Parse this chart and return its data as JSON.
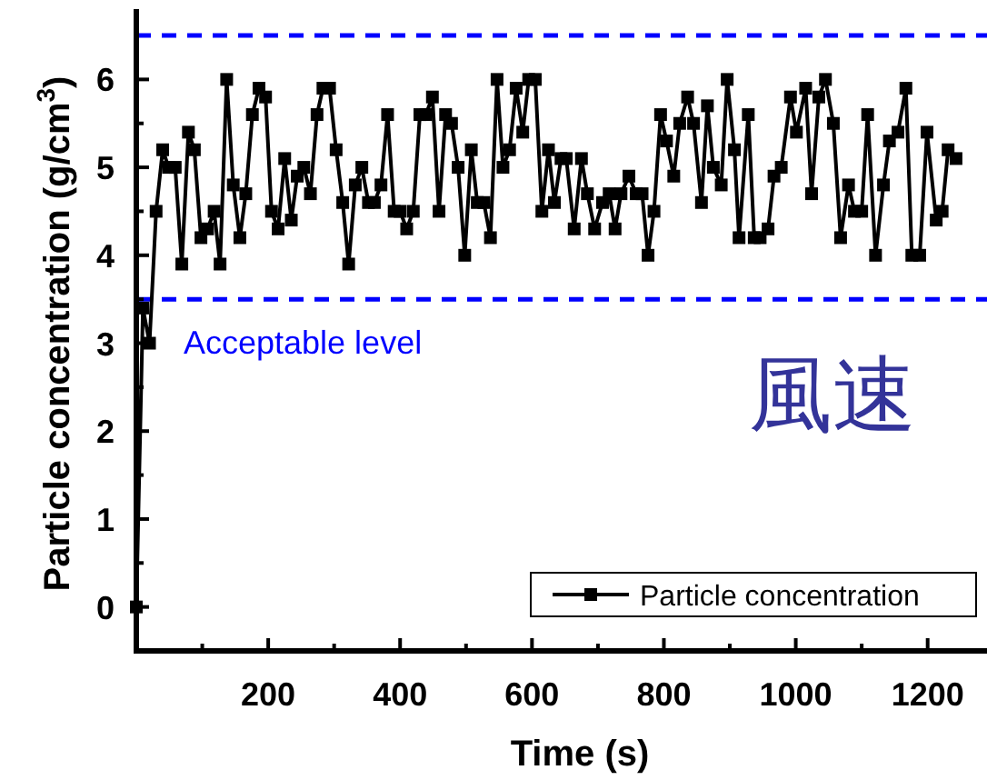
{
  "chart_data": {
    "type": "line",
    "xlabel": "Time (s)",
    "ylabel": "Particle concentration (g/cm$^{3}$)",
    "xlim": [
      0,
      1290
    ],
    "ylim": [
      -0.5,
      6.8
    ],
    "xticks": [
      {
        "value": 100,
        "label": null
      },
      200,
      {
        "value": 300,
        "label": null
      },
      400,
      {
        "value": 500,
        "label": null
      },
      600,
      {
        "value": 700,
        "label": null
      },
      800,
      {
        "value": 900,
        "label": null
      },
      1000,
      {
        "value": 1100,
        "label": null
      },
      1200
    ],
    "yticks": [
      0,
      {
        "value": 0.5,
        "label": null
      },
      1,
      {
        "value": 1.5,
        "label": null
      },
      2,
      {
        "value": 2.5,
        "label": null
      },
      3,
      {
        "value": 3.5,
        "label": null
      },
      4,
      {
        "value": 4.5,
        "label": null
      },
      5,
      {
        "value": 5.5,
        "label": null
      },
      6
    ],
    "legend": "bottom right",
    "marker": "square",
    "line_style": "solid",
    "grid": false,
    "ref_lines": [
      {
        "axis": "y",
        "value": 6.5,
        "color": "#0000ff",
        "line_style": "dashed"
      },
      {
        "axis": "y",
        "value": 3.5,
        "label": "Acceptable level",
        "color": "#0000ff",
        "line_style": "dashed"
      }
    ],
    "annotations": [
      "風速"
    ],
    "series": [
      {
        "name": "Particle concentration",
        "color": "#000000",
        "x": [
          0,
          10,
          20,
          30,
          40,
          49,
          59,
          69,
          79,
          88,
          98,
          108,
          118,
          127,
          137,
          147,
          157,
          166,
          176,
          186,
          196,
          205,
          215,
          225,
          235,
          244,
          254,
          264,
          274,
          283,
          293,
          303,
          313,
          322,
          332,
          342,
          352,
          361,
          371,
          381,
          391,
          400,
          410,
          420,
          430,
          439,
          449,
          459,
          469,
          478,
          488,
          498,
          508,
          517,
          527,
          537,
          547,
          556,
          566,
          576,
          586,
          595,
          605,
          615,
          625,
          634,
          644,
          652,
          664,
          675,
          684,
          695,
          707,
          717,
          726,
          735,
          747,
          758,
          767,
          776,
          785,
          795,
          804,
          815,
          824,
          836,
          845,
          857,
          866,
          875,
          887,
          896,
          907,
          914,
          928,
          937,
          946,
          958,
          967,
          978,
          992,
          1001,
          1015,
          1024,
          1035,
          1045,
          1057,
          1068,
          1080,
          1089,
          1100,
          1109,
          1121,
          1133,
          1142,
          1155,
          1167,
          1176,
          1188,
          1199,
          1213,
          1222,
          1231,
          1243
        ],
        "values": [
          0,
          3.4,
          3.0,
          4.5,
          5.2,
          5.0,
          5.0,
          3.9,
          5.4,
          5.2,
          4.2,
          4.3,
          4.5,
          3.9,
          6.0,
          4.8,
          4.2,
          4.7,
          5.6,
          5.9,
          5.8,
          4.5,
          4.3,
          5.1,
          4.4,
          4.9,
          5.0,
          4.7,
          5.6,
          5.9,
          5.9,
          5.2,
          4.6,
          3.9,
          4.8,
          5.0,
          4.6,
          4.6,
          4.8,
          5.6,
          4.5,
          4.5,
          4.3,
          4.5,
          5.6,
          5.6,
          5.8,
          4.5,
          5.6,
          5.5,
          5.0,
          4.0,
          5.2,
          4.6,
          4.6,
          4.2,
          6.0,
          5.0,
          5.2,
          5.9,
          5.4,
          6.0,
          6.0,
          4.5,
          5.2,
          4.6,
          5.1,
          5.1,
          4.3,
          5.1,
          4.7,
          4.3,
          4.6,
          4.7,
          4.3,
          4.7,
          4.9,
          4.7,
          4.7,
          4.0,
          4.5,
          5.6,
          5.3,
          4.9,
          5.5,
          5.8,
          5.5,
          4.6,
          5.7,
          5.0,
          4.8,
          6.0,
          5.2,
          4.2,
          5.6,
          4.2,
          4.2,
          4.3,
          4.9,
          5.0,
          5.8,
          5.4,
          5.9,
          4.7,
          5.8,
          6.0,
          5.5,
          4.2,
          4.8,
          4.5,
          4.5,
          5.6,
          4.0,
          4.8,
          5.3,
          5.4,
          5.9,
          4.0,
          4.0,
          5.4,
          4.4,
          4.5,
          5.2,
          5.1
        ]
      }
    ]
  }
}
